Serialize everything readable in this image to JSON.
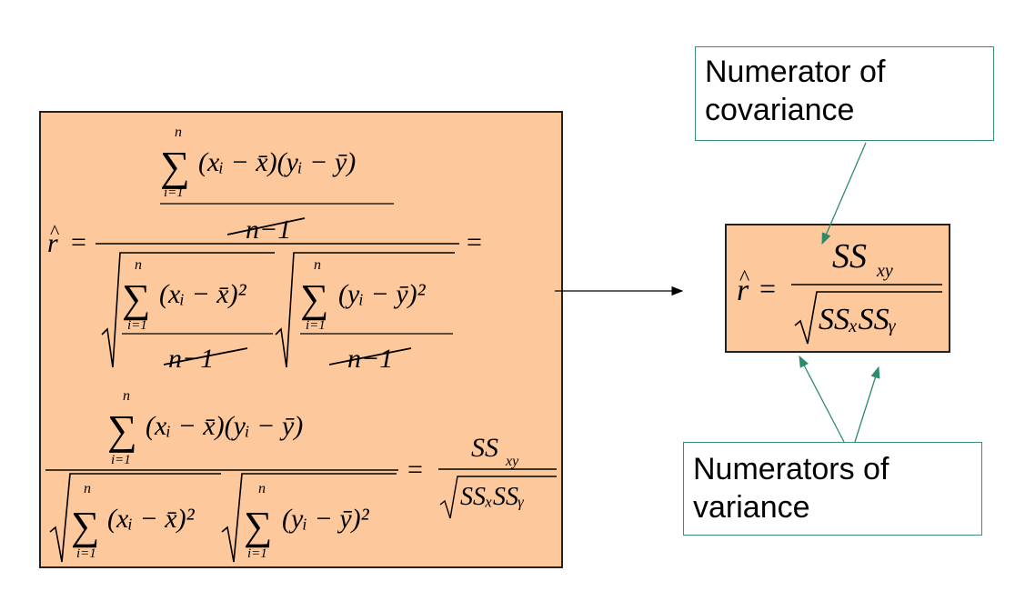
{
  "labels": {
    "covariance": [
      "Numerator of",
      "covariance"
    ],
    "variance": [
      "Numerators of",
      "variance"
    ]
  },
  "formula": {
    "r_hat": "r",
    "hat": "^",
    "equals": "=",
    "sum": "∑",
    "upper": "n",
    "lower": "i=1",
    "cov_term": "(xᵢ − x̄)(yᵢ − ȳ)",
    "x_var_term": "(xᵢ − x̄)²",
    "y_var_term": "(yᵢ − ȳ)²",
    "n_minus_1": "n−1",
    "ss_xy": "SS",
    "ss_xy_sub": "xy",
    "ss_denominator": "SSₓSSᵧ"
  },
  "colors": {
    "box_fill": "#fdc89c",
    "arrow_green": "#2e8b6a"
  }
}
